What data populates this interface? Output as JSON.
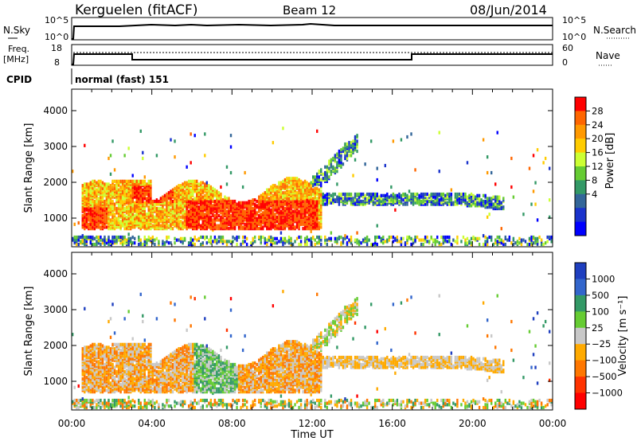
{
  "header": {
    "site": "Kerguelen (fitACF)",
    "beam": "Beam 12",
    "date": "08/Jun/2014"
  },
  "panels": {
    "nsky": {
      "left_label": "N.Sky",
      "top_tick": "10^5",
      "bottom_tick": "10^0",
      "right_top_tick": "10^5",
      "right_bottom_tick": "10^0",
      "right_label": "N.Search"
    },
    "freq": {
      "left_label_1": "Freq.",
      "left_label_2": "[MHz]",
      "top_tick": "18",
      "bottom_tick": "8",
      "right_top_tick": "60",
      "right_bottom_tick": "0",
      "right_label": "Nave"
    },
    "cpid": {
      "left_label": "CPID",
      "value": "normal (fast) 151"
    }
  },
  "colorbars": {
    "power": {
      "label": "Power [dB]",
      "ticks": [
        "28",
        "24",
        "20",
        "16",
        "12",
        "8",
        "4"
      ],
      "colors": [
        "#ff0000",
        "#ff6600",
        "#ff9900",
        "#ffcc00",
        "#ccff33",
        "#66cc33",
        "#339966",
        "#336699",
        "#1a33cc",
        "#0000ff"
      ]
    },
    "velocity": {
      "label": "Velocity [m s⁻¹]",
      "ticks": [
        "1000",
        "500",
        "100",
        "25",
        "−25",
        "−100",
        "−500",
        "−1000"
      ],
      "colors": [
        "#1f3fbf",
        "#3366cc",
        "#339966",
        "#66cc33",
        "#c8c8c8",
        "#ffaa00",
        "#ff7700",
        "#ff3300",
        "#ff0000"
      ]
    }
  },
  "chart_data": [
    {
      "type": "heatmap",
      "title": "Power",
      "xlabel": "Time UT",
      "ylabel": "Slant Range [km]",
      "xticks": [
        "00:00",
        "04:00",
        "08:00",
        "12:00",
        "16:00",
        "20:00",
        "00:00"
      ],
      "yticks": [
        "1000",
        "2000",
        "3000",
        "4000"
      ],
      "xlim": [
        0,
        24
      ],
      "ylim": [
        200,
        4600
      ],
      "regions": [
        {
          "t": [
            0.5,
            12.5
          ],
          "r": [
            700,
            2100
          ],
          "level": "high"
        },
        {
          "t": [
            12.3,
            21.5
          ],
          "r": [
            1300,
            1700
          ],
          "level": "low"
        },
        {
          "t": [
            0,
            24
          ],
          "r": [
            250,
            450
          ],
          "level": "low"
        }
      ]
    },
    {
      "type": "heatmap",
      "title": "Velocity",
      "xlabel": "Time UT",
      "ylabel": "Slant Range [km]",
      "xticks": [
        "00:00",
        "04:00",
        "08:00",
        "12:00",
        "16:00",
        "20:00",
        "00:00"
      ],
      "yticks": [
        "1000",
        "2000",
        "3000",
        "4000"
      ],
      "xlim": [
        0,
        24
      ],
      "ylim": [
        200,
        4600
      ]
    }
  ]
}
